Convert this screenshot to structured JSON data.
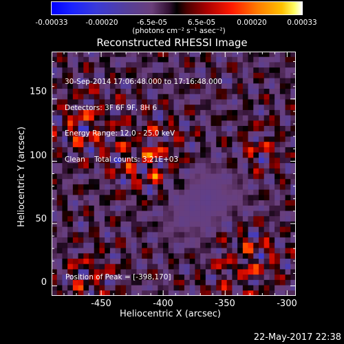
{
  "chart_data": {
    "type": "heatmap",
    "title": "Reconstructed RHESSI Image",
    "xlabel": "Heliocentric X (arcsec)",
    "ylabel": "Heliocentric Y (arcsec)",
    "xlim": [
      -490,
      -293
    ],
    "ylim": [
      -8,
      188
    ],
    "x_ticks": [
      "-450",
      "-400",
      "-350",
      "-300"
    ],
    "x_tick_values": [
      -450,
      -400,
      -350,
      -300
    ],
    "y_ticks": [
      "0",
      "50",
      "100",
      "150"
    ],
    "y_tick_values": [
      0,
      50,
      100,
      150
    ],
    "colorbar": {
      "ticks": [
        "-0.00033",
        "-0.00020",
        "-6.5e-05",
        "6.5e-05",
        "0.00020",
        "0.00033"
      ],
      "tick_values": [
        -0.00033,
        -0.0002,
        -6.5e-05,
        6.5e-05,
        0.0002,
        0.00033
      ],
      "range": [
        -0.00033,
        0.00033
      ],
      "unit_label": "(photons cm⁻² s⁻¹ asec⁻²)"
    },
    "info_lines": [
      "30-Sep-2014 17:06:48.000 to 17:16:48.000",
      "Detectors: 3F 6F 9F, 8H 6",
      "Energy Range: 12.0 - 25.0 keV",
      "Clean    Total counts: 3.21E+03"
    ],
    "peak_label": "Position of Peak = [-398,170]",
    "peak": [
      -398,
      170
    ],
    "grid": false
  },
  "footer": {
    "timestamp": "22-May-2017 22:38"
  }
}
